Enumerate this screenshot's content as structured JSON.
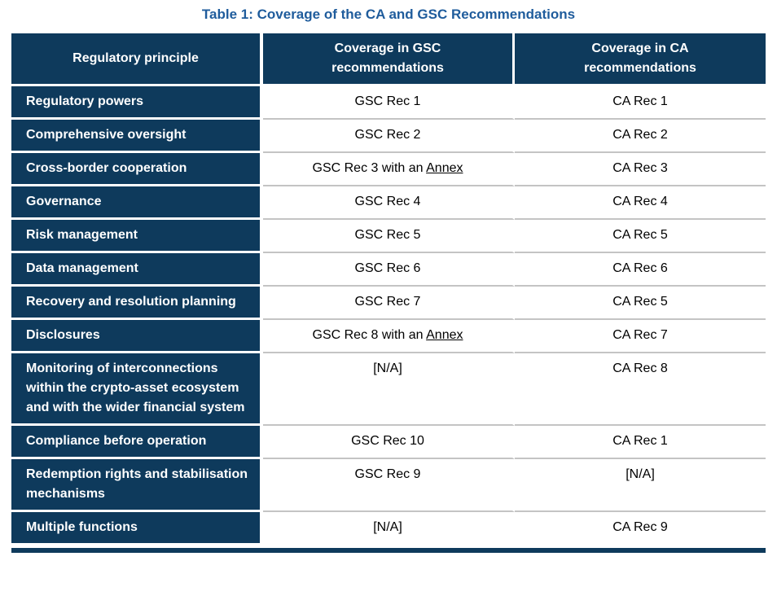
{
  "title": "Table 1: Coverage of the CA and GSC Recommendations",
  "table": {
    "columns": [
      "Regulatory principle",
      "Coverage in GSC recommendations",
      "Coverage in CA recommendations"
    ],
    "rows": [
      {
        "principle": "Regulatory powers",
        "gsc": {
          "text": "GSC Rec 1"
        },
        "ca": {
          "text": "CA Rec 1"
        }
      },
      {
        "principle": "Comprehensive oversight",
        "gsc": {
          "text": "GSC Rec 2"
        },
        "ca": {
          "text": "CA Rec 2"
        }
      },
      {
        "principle": "Cross-border cooperation",
        "gsc": {
          "text": "GSC Rec 3 with an ",
          "link": "Annex"
        },
        "ca": {
          "text": "CA Rec 3"
        }
      },
      {
        "principle": "Governance",
        "gsc": {
          "text": "GSC Rec 4"
        },
        "ca": {
          "text": "CA Rec 4"
        }
      },
      {
        "principle": "Risk management",
        "gsc": {
          "text": "GSC Rec 5"
        },
        "ca": {
          "text": "CA Rec 5"
        }
      },
      {
        "principle": "Data management",
        "gsc": {
          "text": "GSC Rec 6"
        },
        "ca": {
          "text": "CA Rec 6"
        }
      },
      {
        "principle": "Recovery and resolution planning",
        "gsc": {
          "text": "GSC Rec 7"
        },
        "ca": {
          "text": "CA Rec 5"
        }
      },
      {
        "principle": "Disclosures",
        "gsc": {
          "text": "GSC Rec 8 with an ",
          "link": "Annex"
        },
        "ca": {
          "text": "CA Rec 7"
        }
      },
      {
        "principle": "Monitoring of interconnections within the crypto-asset ecosystem and with the wider financial system",
        "gsc": {
          "text": "[N/A]"
        },
        "ca": {
          "text": "CA Rec 8"
        }
      },
      {
        "principle": "Compliance before operation",
        "gsc": {
          "text": "GSC Rec 10"
        },
        "ca": {
          "text": "CA Rec 1"
        }
      },
      {
        "principle": "Redemption rights and stabilisation mechanisms",
        "gsc": {
          "text": "GSC Rec 9"
        },
        "ca": {
          "text": "[N/A]"
        }
      },
      {
        "principle": "Multiple functions",
        "gsc": {
          "text": "[N/A]"
        },
        "ca": {
          "text": "CA Rec 9"
        }
      }
    ]
  },
  "colors": {
    "header_navy": "#0E3A5C",
    "title_blue": "#1F5C9C",
    "row_divider": "#C4C4C4"
  }
}
